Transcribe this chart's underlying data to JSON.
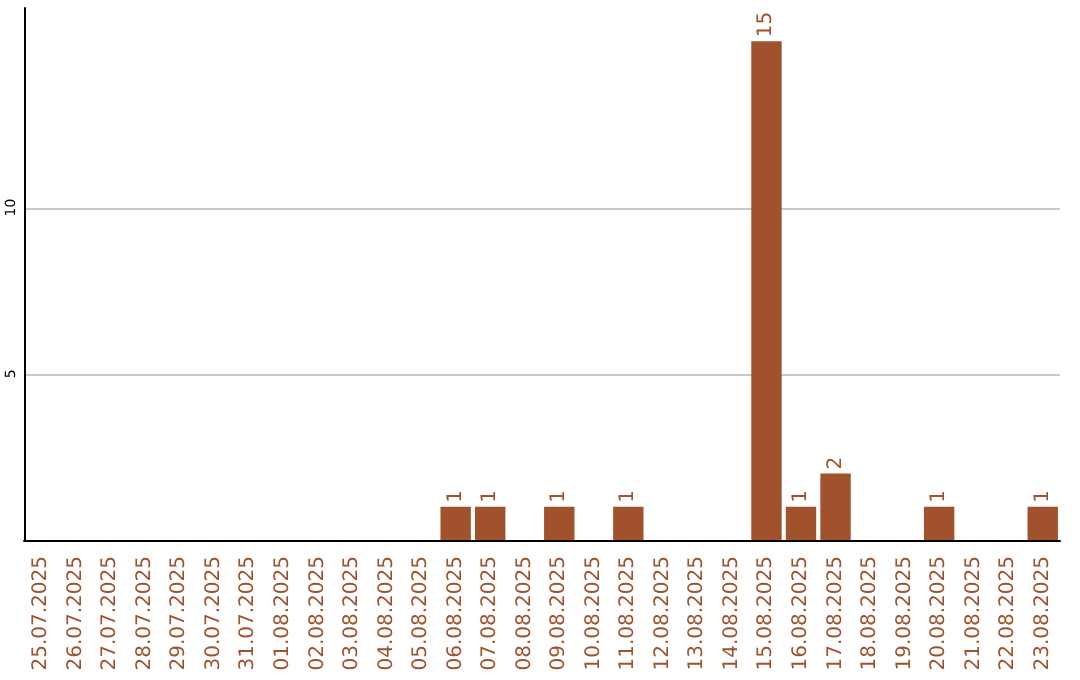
{
  "chart_data": {
    "type": "bar",
    "categories": [
      "25.07.2025",
      "26.07.2025",
      "27.07.2025",
      "28.07.2025",
      "29.07.2025",
      "30.07.2025",
      "31.07.2025",
      "01.08.2025",
      "02.08.2025",
      "03.08.2025",
      "04.08.2025",
      "05.08.2025",
      "06.08.2025",
      "07.08.2025",
      "08.08.2025",
      "09.08.2025",
      "10.08.2025",
      "11.08.2025",
      "12.08.2025",
      "13.08.2025",
      "14.08.2025",
      "15.08.2025",
      "16.08.2025",
      "17.08.2025",
      "18.08.2025",
      "19.08.2025",
      "20.08.2025",
      "21.08.2025",
      "22.08.2025",
      "23.08.2025"
    ],
    "values": [
      0,
      0,
      0,
      0,
      0,
      0,
      0,
      0,
      0,
      0,
      0,
      0,
      1,
      1,
      0,
      1,
      0,
      1,
      0,
      0,
      0,
      15,
      1,
      2,
      0,
      0,
      1,
      0,
      0,
      1
    ],
    "value_labels": [
      null,
      null,
      null,
      null,
      null,
      null,
      null,
      null,
      null,
      null,
      null,
      null,
      "1",
      "1",
      null,
      "1",
      null,
      "1",
      null,
      null,
      null,
      "15",
      "1",
      "2",
      null,
      null,
      "1",
      null,
      null,
      "1"
    ],
    "color": "#a0522d",
    "ylim": [
      0,
      16
    ],
    "yticks": [
      5,
      10
    ],
    "grid": "y"
  }
}
